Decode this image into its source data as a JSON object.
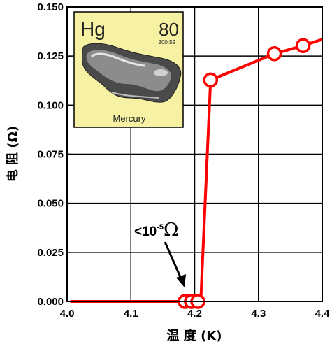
{
  "chart_data": {
    "type": "line",
    "xlabel": "温 度 (K)",
    "ylabel": "电 阻 (Ω)",
    "xlim": [
      4.0,
      4.4
    ],
    "ylim": [
      0.0,
      0.15
    ],
    "x_ticks": [
      "4.0",
      "4.1",
      "4.2",
      "4.3",
      "4.4"
    ],
    "y_ticks": [
      "0.000",
      "0.025",
      "0.050",
      "0.075",
      "0.100",
      "0.125",
      "0.150"
    ],
    "grid": true,
    "series": [
      {
        "color": "#ff0000",
        "line": [
          [
            4.005,
            0.0
          ],
          [
            4.18,
            0.0
          ],
          [
            4.19,
            0.0
          ],
          [
            4.2,
            0.0
          ],
          [
            4.21,
            0.003
          ],
          [
            4.225,
            0.1128
          ],
          [
            4.325,
            0.1262
          ],
          [
            4.37,
            0.1303
          ],
          [
            4.4,
            0.1335
          ]
        ],
        "markers": [
          [
            4.185,
            0.0
          ],
          [
            4.195,
            0.0
          ],
          [
            4.205,
            0.0
          ],
          [
            4.225,
            0.1128
          ],
          [
            4.325,
            0.1262
          ],
          [
            4.37,
            0.1303
          ]
        ]
      }
    ],
    "annotation": {
      "text_base": "<10",
      "text_exp": "-5",
      "text_unit": "Ω",
      "points_to": [
        4.18,
        0.002
      ]
    }
  },
  "inset": {
    "symbol": "Hg",
    "number": "80",
    "mass": "200.59",
    "name": "Mercury",
    "background": "#f6f1a3"
  }
}
